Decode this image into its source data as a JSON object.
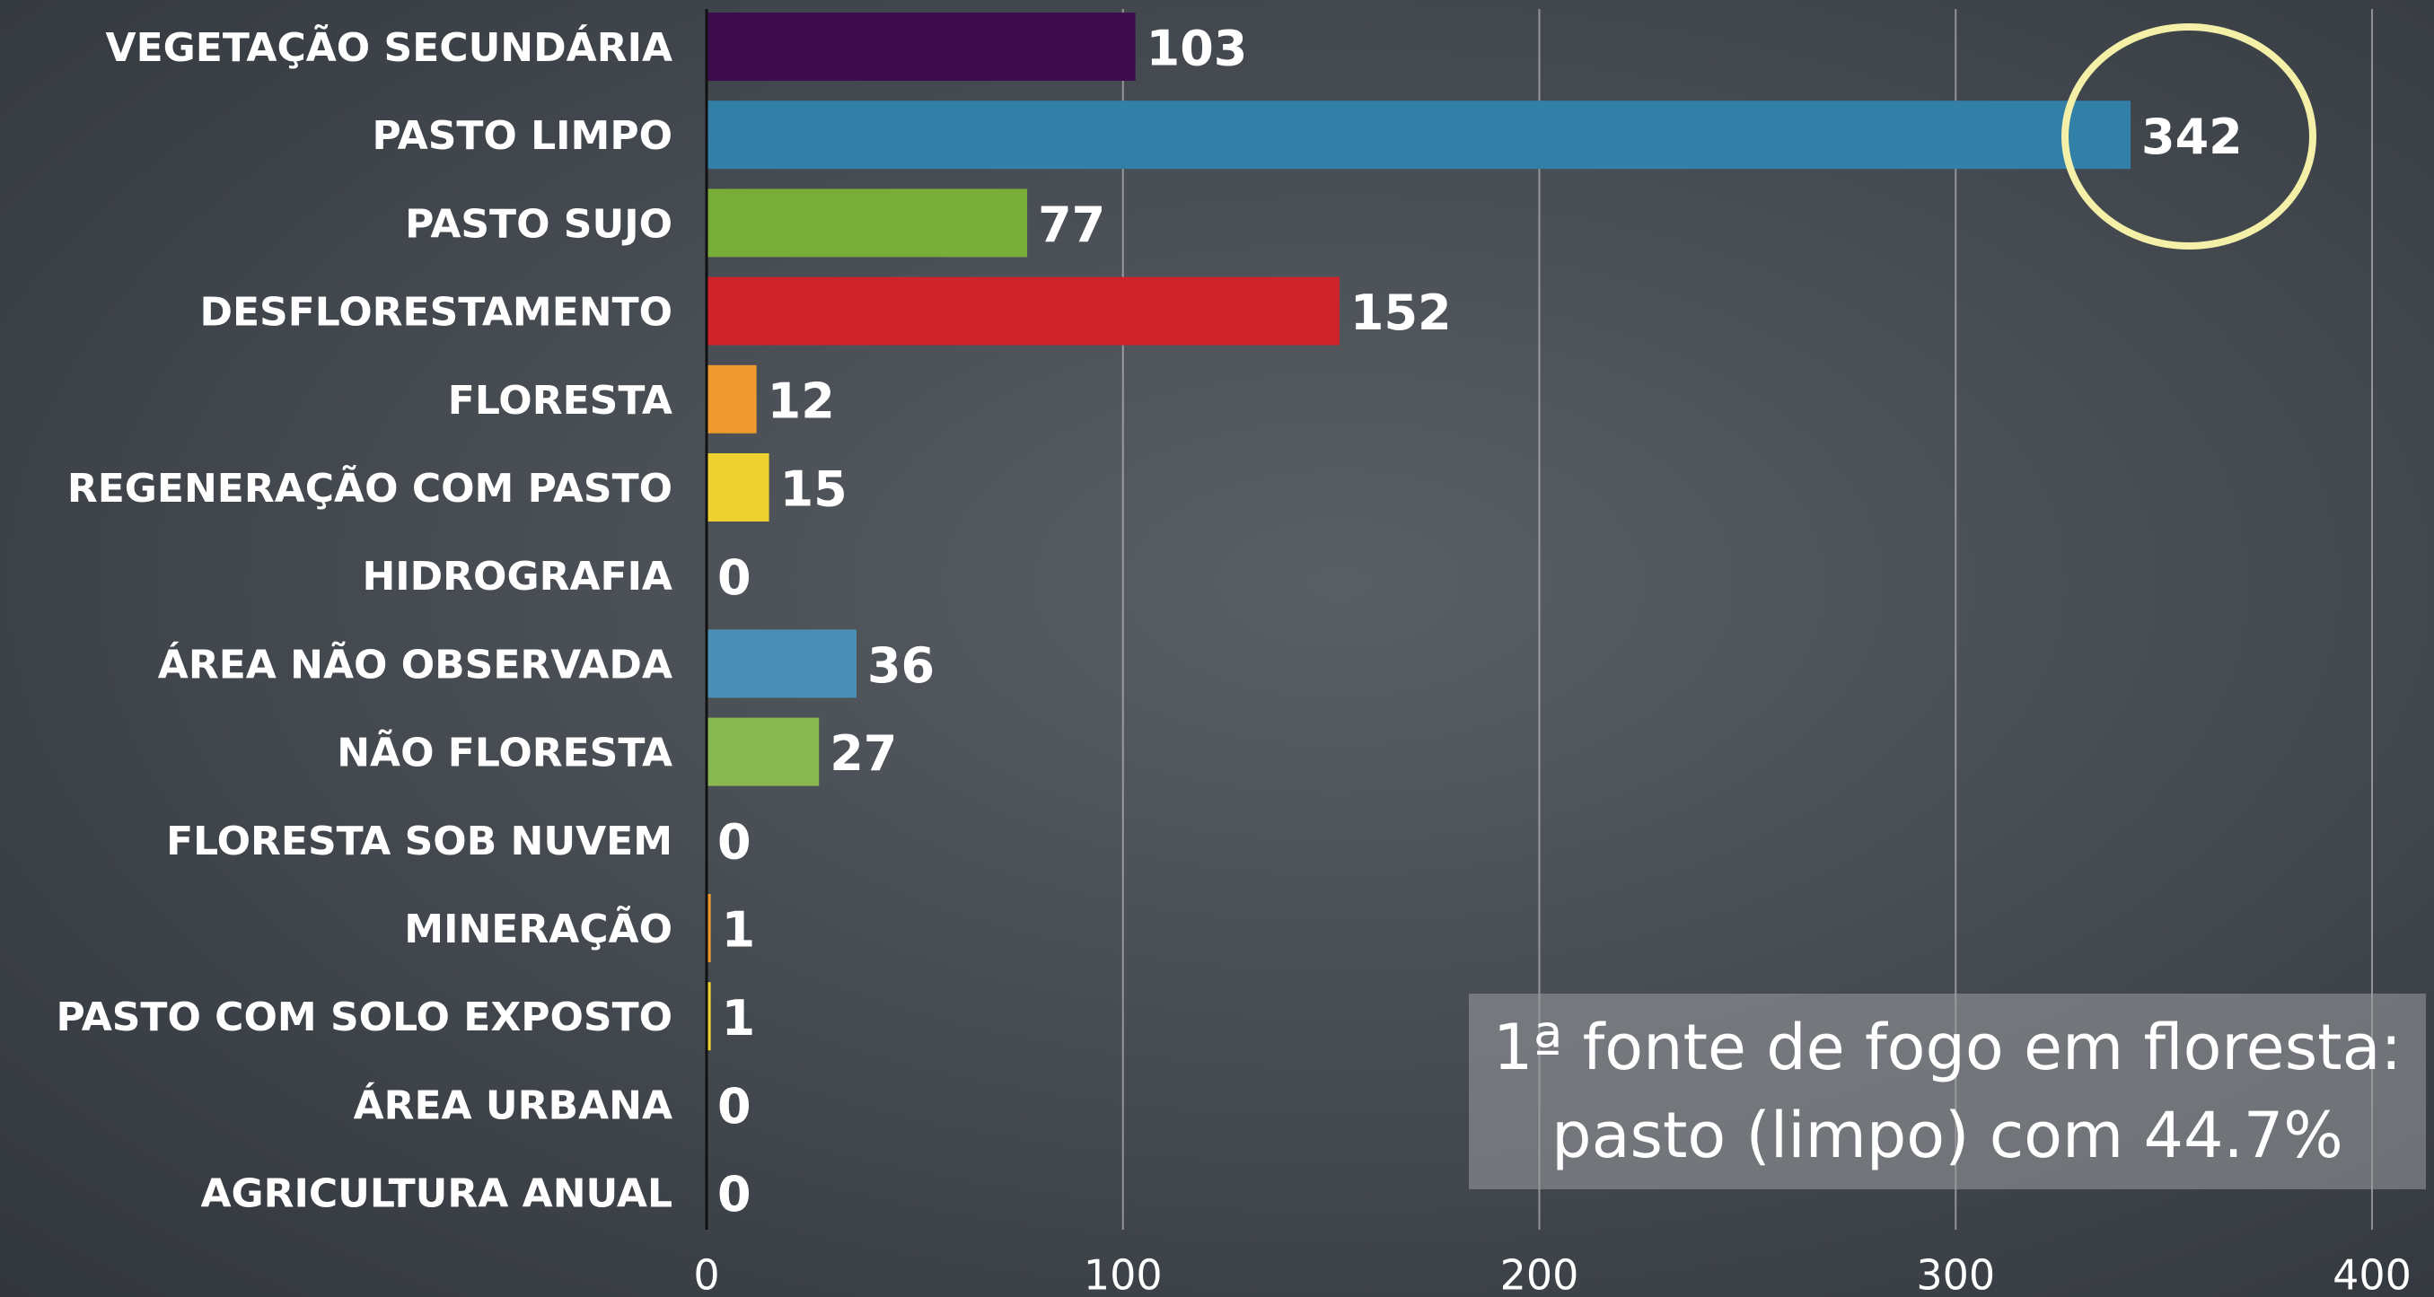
{
  "chart_data": {
    "type": "bar",
    "orientation": "horizontal",
    "categories": [
      "VEGETAÇÃO SECUNDÁRIA",
      "PASTO LIMPO",
      "PASTO SUJO",
      "DESFLORESTAMENTO",
      "FLORESTA",
      "REGENERAÇÃO COM PASTO",
      "HIDROGRAFIA",
      "ÁREA NÃO OBSERVADA",
      "NÃO FLORESTA",
      "FLORESTA SOB NUVEM",
      "MINERAÇÃO",
      "PASTO COM SOLO EXPOSTO",
      "ÁREA URBANA",
      "AGRICULTURA ANUAL"
    ],
    "values": [
      103,
      342,
      77,
      152,
      12,
      15,
      0,
      36,
      27,
      0,
      1,
      1,
      0,
      0
    ],
    "colors": [
      "#3f0d4d",
      "#327fa8",
      "#78ad3a",
      "#d0222b",
      "#ee9a2e",
      "#eed030",
      "#327fa8",
      "#4a8fb5",
      "#89b851",
      "#d0222b",
      "#ee9a2e",
      "#eed030",
      "#4a8fb5",
      "#89b851"
    ],
    "xlim": [
      0,
      400
    ],
    "xticks": [
      0,
      100,
      200,
      300,
      400
    ],
    "grid": true,
    "annotation": [
      "1ª fonte de fogo em floresta:",
      "pasto (limpo) com 44.7%"
    ]
  }
}
